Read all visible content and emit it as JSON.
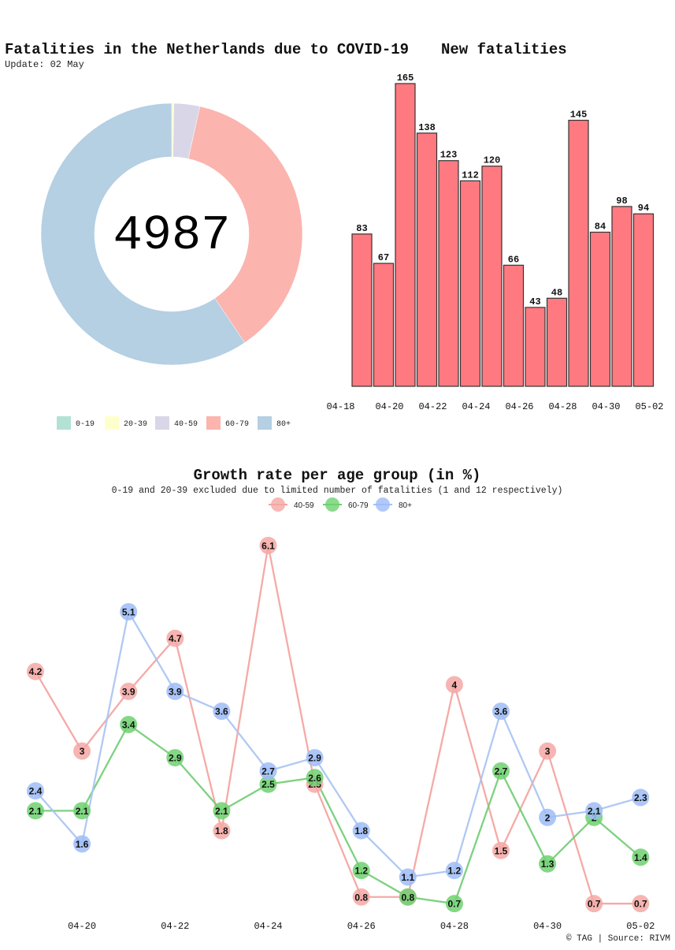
{
  "donut": {
    "title": "Fatalities in the Netherlands due to COVID-19",
    "update": "Update: 02 May",
    "total": "4987"
  },
  "bars": {
    "title": "New fatalities"
  },
  "growth": {
    "title": "Growth rate per age group (in %)",
    "subtitle": "0-19 and 20-39 excluded due to limited number of fatalities (1 and 12 respectively)"
  },
  "footer": "© TAG | Source: RIVM",
  "chart_data": [
    {
      "type": "pie",
      "title": "Fatalities in the Netherlands due to COVID-19",
      "center_label": "4987",
      "categories": [
        "0-19",
        "20-39",
        "40-59",
        "60-79",
        "80+"
      ],
      "values": [
        1,
        12,
        160,
        1850,
        2964
      ],
      "colors": [
        "#b3e2d5",
        "#ffffcc",
        "#d9d6e8",
        "#fbb4ae",
        "#b5cfe3"
      ],
      "legend": "bottom"
    },
    {
      "type": "bar",
      "title": "New fatalities",
      "categories": [
        "04-18",
        "04-19",
        "04-20",
        "04-21",
        "04-22",
        "04-23",
        "04-24",
        "04-25",
        "04-26",
        "04-27",
        "04-28",
        "04-29",
        "04-30",
        "05-01",
        "05-02"
      ],
      "values": [
        83,
        67,
        165,
        138,
        123,
        112,
        120,
        66,
        43,
        48,
        145,
        84,
        98,
        94,
        0
      ],
      "tick_labels": [
        "04-18",
        "04-20",
        "04-22",
        "04-24",
        "04-26",
        "04-28",
        "04-30",
        "05-02"
      ],
      "color": "#ff7a80",
      "ylim": [
        0,
        165
      ]
    },
    {
      "type": "line",
      "title": "Growth rate per age group (in %)",
      "x": [
        "04-19",
        "04-20",
        "04-21",
        "04-22",
        "04-23",
        "04-24",
        "04-25",
        "04-26",
        "04-27",
        "04-28",
        "04-29",
        "04-30",
        "05-01",
        "05-02"
      ],
      "tick_labels": [
        "04-20",
        "04-22",
        "04-24",
        "04-26",
        "04-28",
        "04-30",
        "05-02"
      ],
      "series": [
        {
          "name": "40-59",
          "color": "#f4a19c",
          "dot": "#f4a8a4",
          "values": [
            4.2,
            3,
            3.9,
            4.7,
            1.8,
            6.1,
            2.5,
            0.8,
            0.8,
            4,
            1.5,
            3,
            0.7,
            0.7
          ]
        },
        {
          "name": "60-79",
          "color": "#6fcc72",
          "dot": "#6ed170",
          "values": [
            2.1,
            2.1,
            3.4,
            2.9,
            2.1,
            2.5,
            2.6,
            1.2,
            0.8,
            0.7,
            2.7,
            1.3,
            2,
            1.4
          ]
        },
        {
          "name": "80+",
          "color": "#a7c3f2",
          "dot": "#9dbcf7",
          "values": [
            2.4,
            1.6,
            5.1,
            3.9,
            3.6,
            2.7,
            2.9,
            1.8,
            1.1,
            1.2,
            3.6,
            2,
            2.1,
            2.3
          ]
        }
      ],
      "ylim": [
        0.5,
        6.3
      ],
      "legend": "top-center"
    }
  ]
}
